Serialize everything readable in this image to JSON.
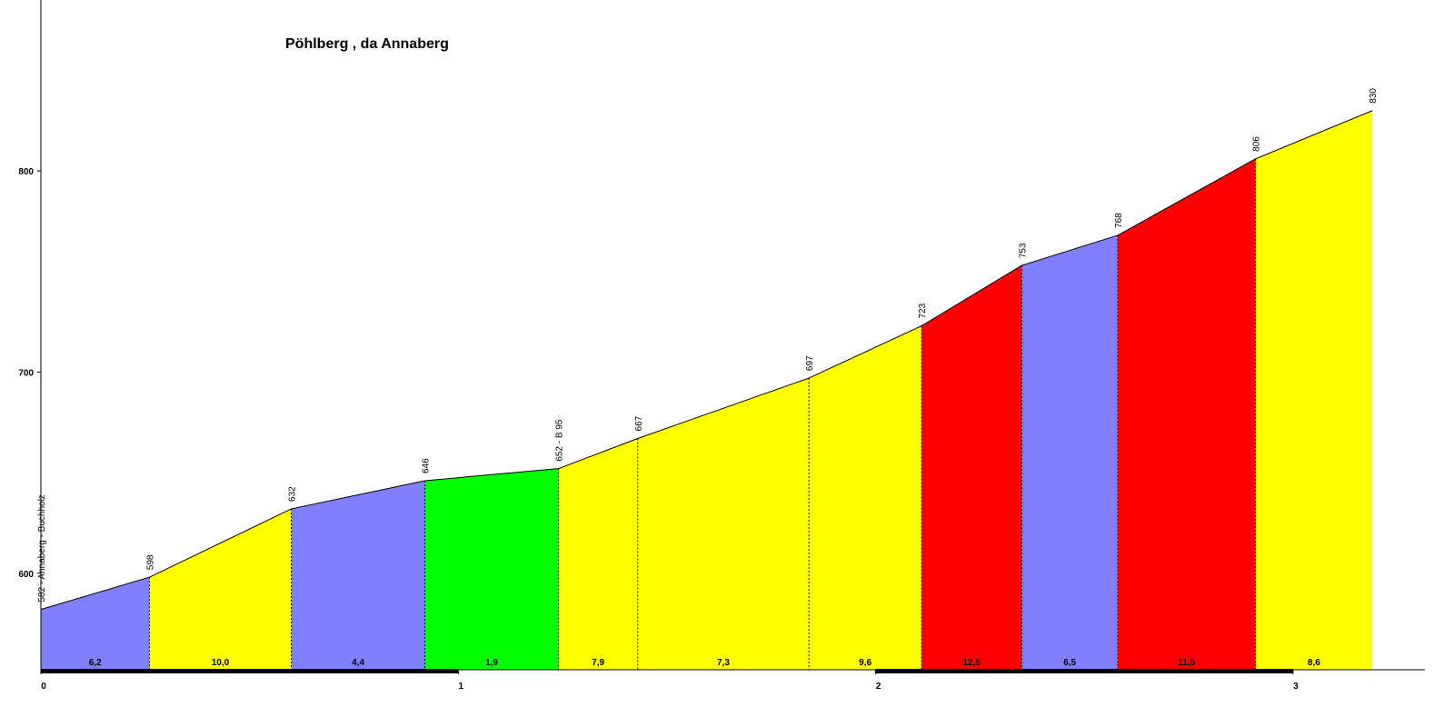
{
  "chart_data": {
    "type": "area",
    "title": "Pöhlberg , da Annaberg",
    "x": [
      0,
      0.26,
      0.6,
      0.92,
      1.24,
      1.43,
      1.84,
      2.11,
      2.35,
      2.58,
      2.91,
      3.19
    ],
    "values": [
      582,
      598,
      632,
      646,
      652,
      667,
      697,
      723,
      753,
      768,
      806,
      830
    ],
    "value_labels": [
      "582 - Annaberg - Buchholz",
      "598",
      "632",
      "646",
      "652 - B 95",
      "667",
      "697",
      "723",
      "753",
      "768",
      "806",
      "830"
    ],
    "segments": {
      "values": [
        6.2,
        10.0,
        4.4,
        1.9,
        7.9,
        7.3,
        9.6,
        12.5,
        6.5,
        11.5,
        8.6
      ],
      "value_labels": [
        "6,2",
        "10,0",
        "4,4",
        "1,9",
        "7,9",
        "7,3",
        "9,6",
        "12,5",
        "6,5",
        "11,5",
        "8,6"
      ],
      "colors": [
        "#8080ff",
        "#ffff00",
        "#8080ff",
        "#00ff00",
        "#ffff00",
        "#ffff00",
        "#ffff00",
        "#ff0000",
        "#8080ff",
        "#ff0000",
        "#ffff00"
      ]
    },
    "xlim": [
      0,
      3.32
    ],
    "ylim": [
      552,
      885
    ],
    "xticks": [
      0,
      1,
      2,
      3
    ],
    "yticks": [
      600,
      700,
      800
    ]
  }
}
